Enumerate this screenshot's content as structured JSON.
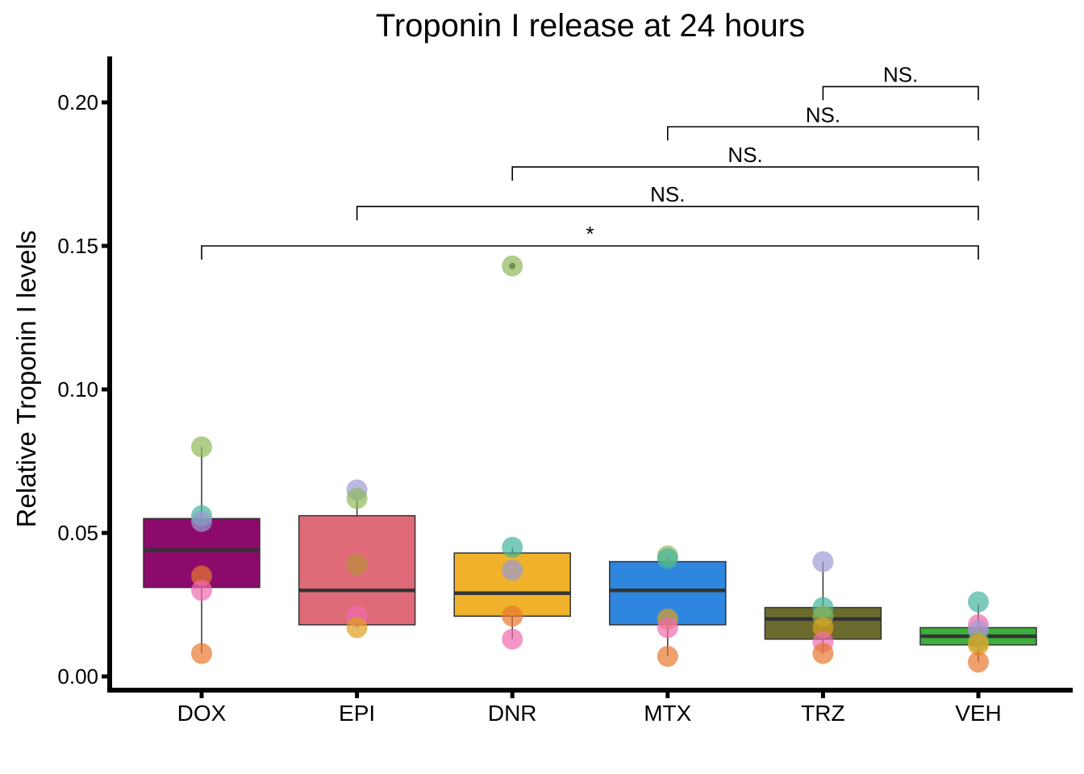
{
  "chart_data": {
    "type": "box",
    "title": "Troponin I release at 24 hours",
    "xlabel": "",
    "ylabel": "Relative Troponin I levels",
    "ylim": [
      -0.004,
      0.215
    ],
    "yticks": [
      "0.00",
      "0.05",
      "0.10",
      "0.15",
      "0.20"
    ],
    "ytick_values": [
      0.0,
      0.05,
      0.1,
      0.15,
      0.2
    ],
    "categories": [
      "DOX",
      "EPI",
      "DNR",
      "MTX",
      "TRZ",
      "VEH"
    ],
    "box_colors": [
      "#8B0A6B",
      "#E06B78",
      "#EFB22A",
      "#2E86DE",
      "#6B6B2E",
      "#3CAF3C"
    ],
    "boxes": [
      {
        "category": "DOX",
        "q1": 0.031,
        "median": 0.044,
        "q3": 0.055,
        "whisker_low": 0.008,
        "whisker_high": 0.08
      },
      {
        "category": "EPI",
        "q1": 0.018,
        "median": 0.03,
        "q3": 0.056,
        "whisker_low": 0.017,
        "whisker_high": 0.062
      },
      {
        "category": "DNR",
        "q1": 0.021,
        "median": 0.029,
        "q3": 0.043,
        "whisker_low": 0.013,
        "whisker_high": 0.045
      },
      {
        "category": "MTX",
        "q1": 0.018,
        "median": 0.03,
        "q3": 0.04,
        "whisker_low": 0.007,
        "whisker_high": 0.042
      },
      {
        "category": "TRZ",
        "q1": 0.013,
        "median": 0.02,
        "q3": 0.024,
        "whisker_low": 0.008,
        "whisker_high": 0.04
      },
      {
        "category": "VEH",
        "q1": 0.011,
        "median": 0.014,
        "q3": 0.017,
        "whisker_low": 0.005,
        "whisker_high": 0.025
      }
    ],
    "outliers": [
      {
        "category": "DNR",
        "value": 0.143
      }
    ],
    "point_colors": [
      "#8FB85A",
      "#45B39D",
      "#9B9BD4",
      "#E8772E",
      "#F06BAE",
      "#E0A020"
    ],
    "points": [
      {
        "category": "DOX",
        "value": 0.08,
        "color": 0
      },
      {
        "category": "DOX",
        "value": 0.056,
        "color": 1
      },
      {
        "category": "DOX",
        "value": 0.054,
        "color": 2
      },
      {
        "category": "DOX",
        "value": 0.035,
        "color": 3
      },
      {
        "category": "DOX",
        "value": 0.03,
        "color": 4
      },
      {
        "category": "DOX",
        "value": 0.008,
        "color": 3
      },
      {
        "category": "EPI",
        "value": 0.065,
        "color": 2
      },
      {
        "category": "EPI",
        "value": 0.062,
        "color": 0
      },
      {
        "category": "EPI",
        "value": 0.039,
        "color": 1
      },
      {
        "category": "EPI",
        "value": 0.039,
        "color": 3
      },
      {
        "category": "EPI",
        "value": 0.021,
        "color": 4
      },
      {
        "category": "EPI",
        "value": 0.017,
        "color": 5
      },
      {
        "category": "DNR",
        "value": 0.143,
        "color": 0
      },
      {
        "category": "DNR",
        "value": 0.045,
        "color": 1
      },
      {
        "category": "DNR",
        "value": 0.037,
        "color": 2
      },
      {
        "category": "DNR",
        "value": 0.021,
        "color": 3
      },
      {
        "category": "DNR",
        "value": 0.013,
        "color": 4
      },
      {
        "category": "MTX",
        "value": 0.042,
        "color": 0
      },
      {
        "category": "MTX",
        "value": 0.041,
        "color": 1
      },
      {
        "category": "MTX",
        "value": 0.02,
        "color": 5
      },
      {
        "category": "MTX",
        "value": 0.017,
        "color": 4
      },
      {
        "category": "MTX",
        "value": 0.007,
        "color": 3
      },
      {
        "category": "TRZ",
        "value": 0.04,
        "color": 2
      },
      {
        "category": "TRZ",
        "value": 0.024,
        "color": 1
      },
      {
        "category": "TRZ",
        "value": 0.021,
        "color": 0
      },
      {
        "category": "TRZ",
        "value": 0.017,
        "color": 5
      },
      {
        "category": "TRZ",
        "value": 0.012,
        "color": 4
      },
      {
        "category": "TRZ",
        "value": 0.008,
        "color": 3
      },
      {
        "category": "VEH",
        "value": 0.026,
        "color": 1
      },
      {
        "category": "VEH",
        "value": 0.018,
        "color": 4
      },
      {
        "category": "VEH",
        "value": 0.016,
        "color": 2
      },
      {
        "category": "VEH",
        "value": 0.012,
        "color": 0
      },
      {
        "category": "VEH",
        "value": 0.011,
        "color": 5
      },
      {
        "category": "VEH",
        "value": 0.005,
        "color": 3
      }
    ],
    "comparisons": [
      {
        "from": "TRZ",
        "to": "VEH",
        "y": 0.2055,
        "label": "NS."
      },
      {
        "from": "MTX",
        "to": "VEH",
        "y": 0.1915,
        "label": "NS."
      },
      {
        "from": "DNR",
        "to": "VEH",
        "y": 0.1775,
        "label": "NS."
      },
      {
        "from": "EPI",
        "to": "VEH",
        "y": 0.1637,
        "label": "NS."
      },
      {
        "from": "DOX",
        "to": "VEH",
        "y": 0.15,
        "label": "*"
      }
    ],
    "grid": false,
    "legend": "none"
  }
}
